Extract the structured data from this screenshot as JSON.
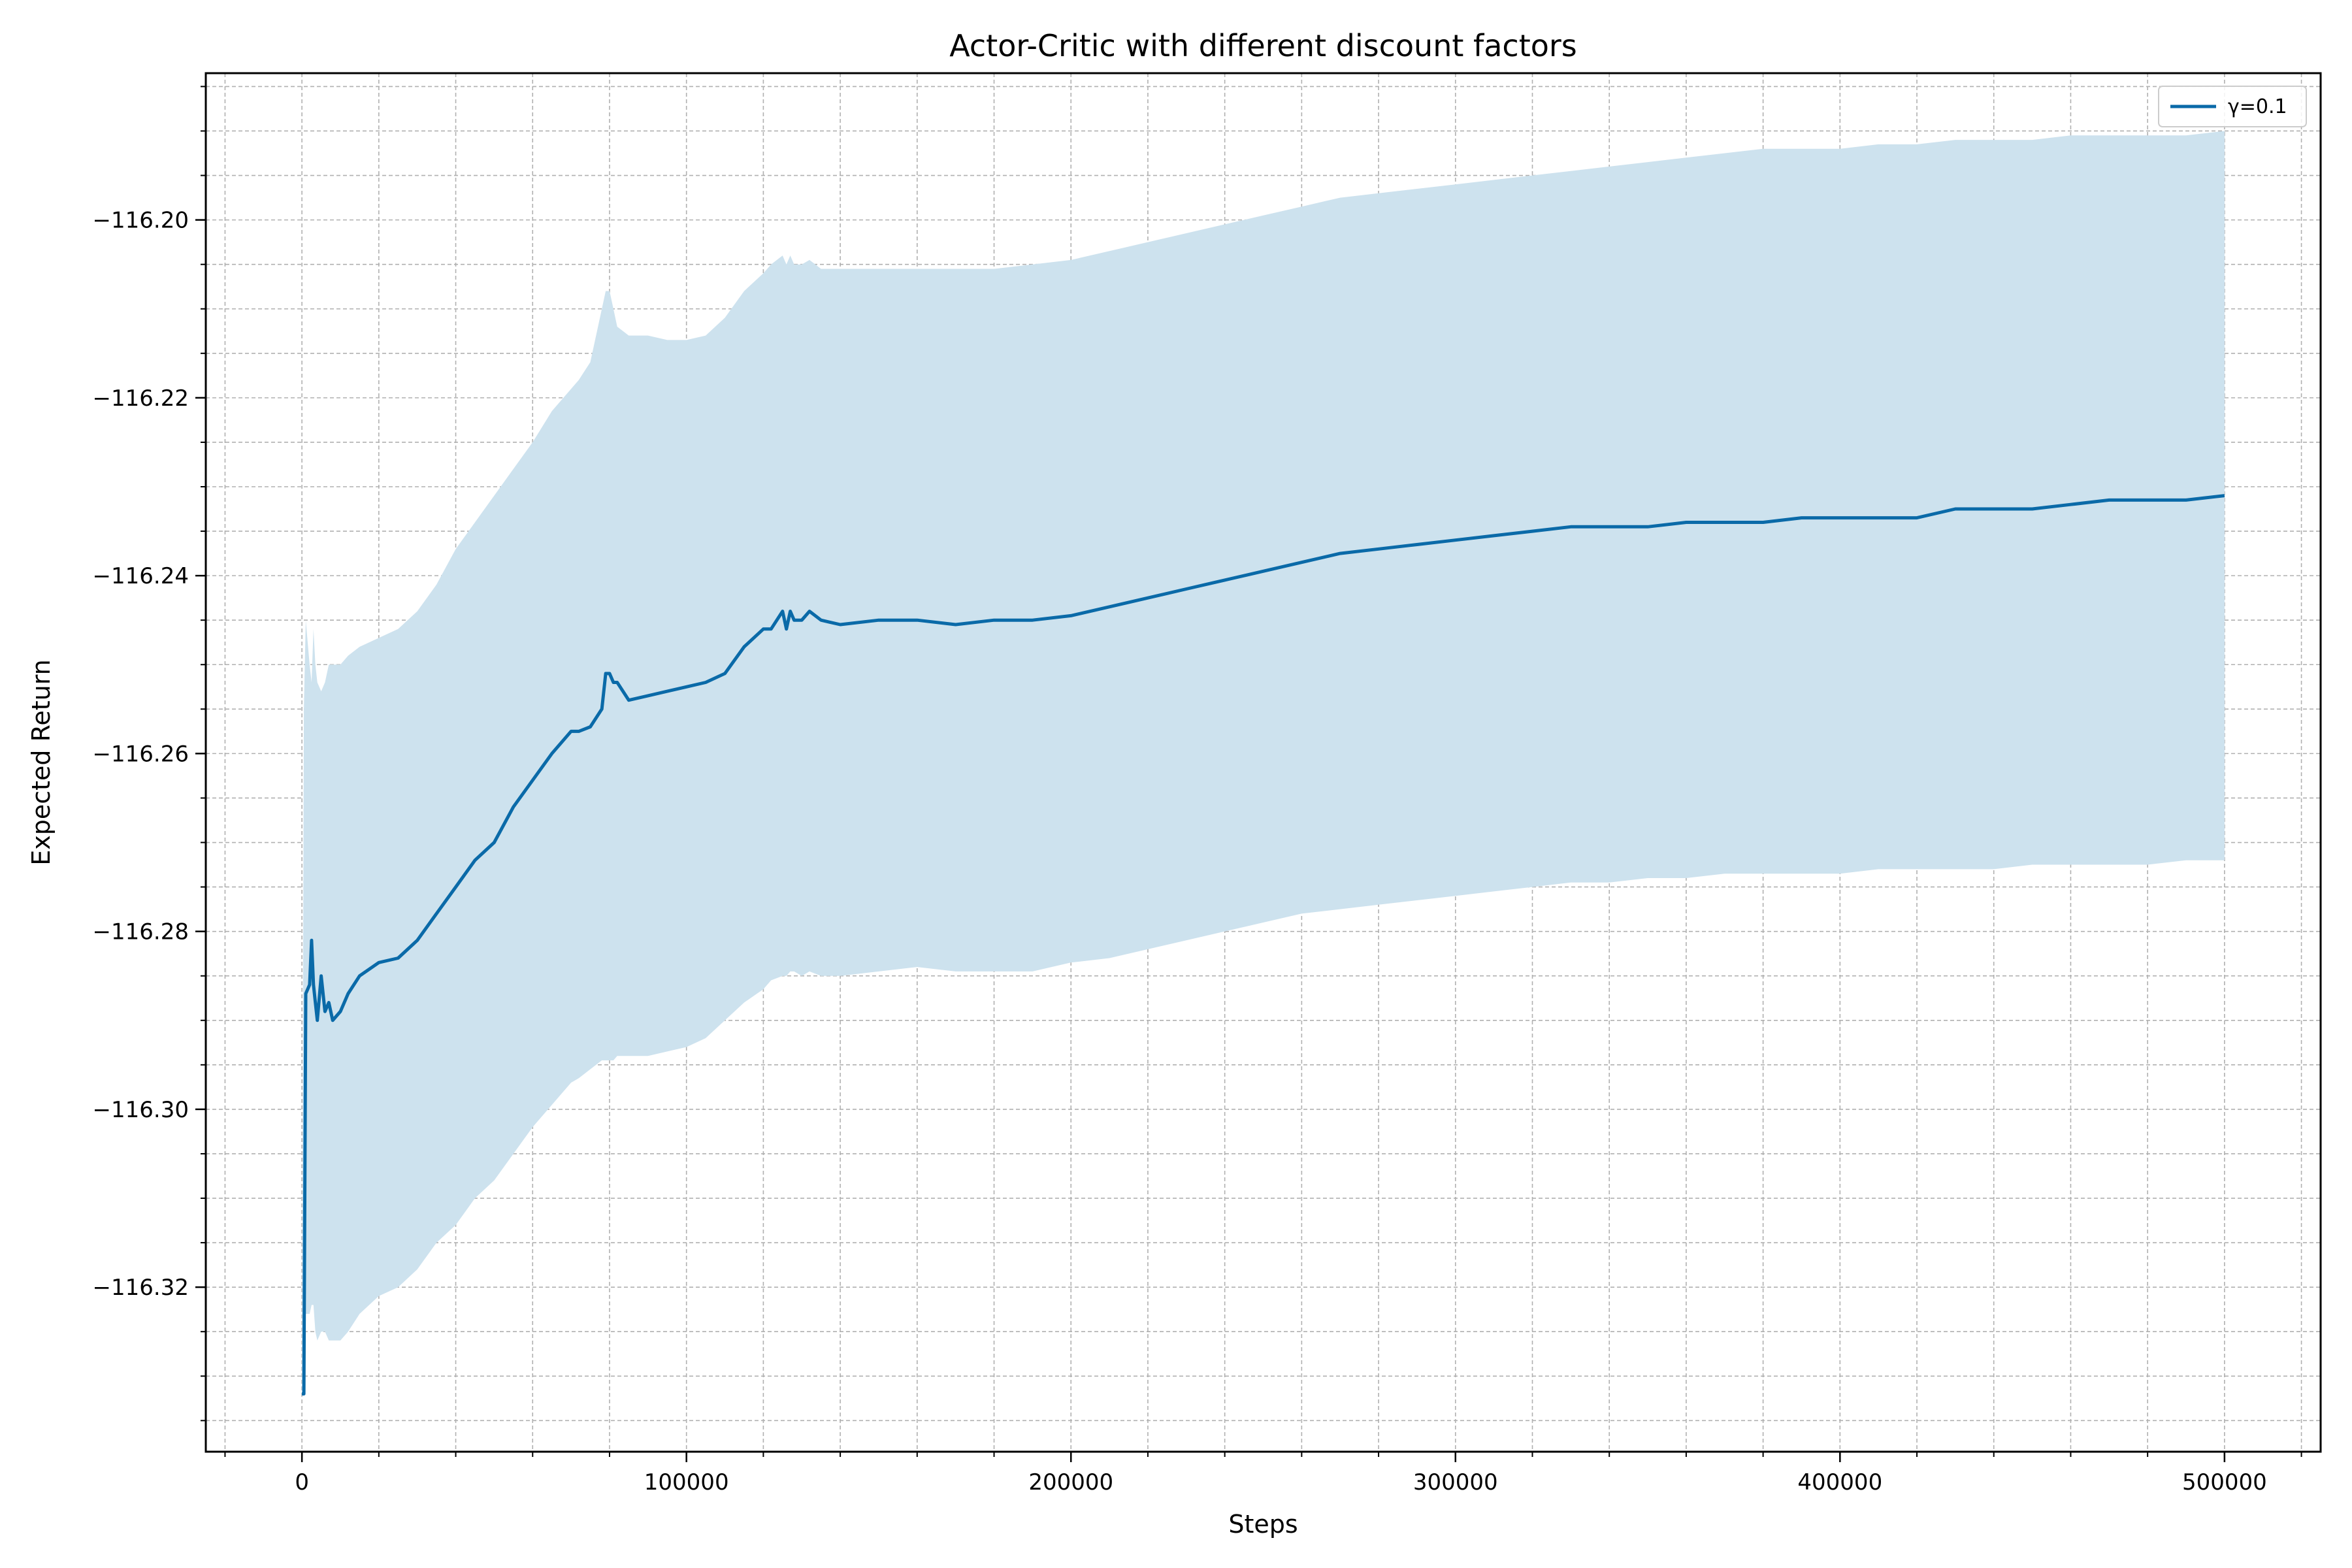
{
  "chart_data": {
    "type": "line",
    "title": "Actor-Critic with different discount factors",
    "xlabel": "Steps",
    "ylabel": "Expected Return",
    "xlim": [
      -25000,
      525000
    ],
    "ylim": [
      -116.3385,
      -116.1835
    ],
    "x_major_ticks": [
      0,
      100000,
      200000,
      300000,
      400000,
      500000
    ],
    "x_tick_labels": [
      "0",
      "100000",
      "200000",
      "300000",
      "400000",
      "500000"
    ],
    "x_minor_step": 20000,
    "y_major_ticks": [
      -116.32,
      -116.3,
      -116.28,
      -116.26,
      -116.24,
      -116.22,
      -116.2
    ],
    "y_tick_labels": [
      "−116.32",
      "−116.30",
      "−116.28",
      "−116.26",
      "−116.24",
      "−116.22",
      "−116.20"
    ],
    "y_minor_step": 0.005,
    "grid": true,
    "legend_position": "top-right",
    "colors": {
      "line": "#0a6aa8",
      "band": "#cde2ee",
      "grid": "#b0b0b0"
    },
    "series": [
      {
        "name": "γ=0.1",
        "x": [
          0,
          500,
          1000,
          2000,
          2500,
          3000,
          3500,
          4000,
          5000,
          6000,
          7000,
          8000,
          10000,
          12000,
          15000,
          20000,
          25000,
          30000,
          35000,
          40000,
          45000,
          50000,
          55000,
          60000,
          65000,
          70000,
          72000,
          75000,
          78000,
          79000,
          80000,
          81000,
          82000,
          85000,
          90000,
          95000,
          100000,
          105000,
          110000,
          115000,
          120000,
          122000,
          125000,
          126000,
          127000,
          128000,
          130000,
          132000,
          135000,
          140000,
          150000,
          160000,
          170000,
          180000,
          190000,
          200000,
          210000,
          220000,
          230000,
          240000,
          250000,
          260000,
          270000,
          280000,
          290000,
          300000,
          310000,
          320000,
          330000,
          340000,
          350000,
          360000,
          370000,
          380000,
          390000,
          400000,
          410000,
          420000,
          430000,
          440000,
          450000,
          460000,
          470000,
          480000,
          490000,
          500000
        ],
        "y": [
          -116.332,
          -116.332,
          -116.287,
          -116.286,
          -116.281,
          -116.286,
          -116.288,
          -116.29,
          -116.285,
          -116.289,
          -116.288,
          -116.29,
          -116.289,
          -116.287,
          -116.285,
          -116.2835,
          -116.283,
          -116.281,
          -116.278,
          -116.275,
          -116.272,
          -116.27,
          -116.266,
          -116.263,
          -116.26,
          -116.2575,
          -116.2575,
          -116.257,
          -116.255,
          -116.251,
          -116.251,
          -116.252,
          -116.252,
          -116.254,
          -116.2535,
          -116.253,
          -116.2525,
          -116.252,
          -116.251,
          -116.248,
          -116.246,
          -116.246,
          -116.244,
          -116.246,
          -116.244,
          -116.245,
          -116.245,
          -116.244,
          -116.245,
          -116.2455,
          -116.245,
          -116.245,
          -116.2455,
          -116.245,
          -116.245,
          -116.2445,
          -116.2435,
          -116.2425,
          -116.2415,
          -116.2405,
          -116.2395,
          -116.2385,
          -116.2375,
          -116.237,
          -116.2365,
          -116.236,
          -116.2355,
          -116.235,
          -116.2345,
          -116.2345,
          -116.2345,
          -116.234,
          -116.234,
          -116.234,
          -116.2335,
          -116.2335,
          -116.2335,
          -116.2335,
          -116.2325,
          -116.2325,
          -116.2325,
          -116.232,
          -116.2315,
          -116.2315,
          -116.2315,
          -116.231
        ],
        "band_upper": [
          -116.33,
          -116.255,
          -116.245,
          -116.25,
          -116.252,
          -116.246,
          -116.25,
          -116.252,
          -116.253,
          -116.252,
          -116.25,
          -116.25,
          -116.25,
          -116.249,
          -116.248,
          -116.247,
          -116.246,
          -116.244,
          -116.241,
          -116.237,
          -116.234,
          -116.231,
          -116.228,
          -116.225,
          -116.2215,
          -116.219,
          -116.218,
          -116.216,
          -116.21,
          -116.208,
          -116.208,
          -116.21,
          -116.212,
          -116.213,
          -116.213,
          -116.2135,
          -116.2135,
          -116.213,
          -116.211,
          -116.208,
          -116.206,
          -116.205,
          -116.204,
          -116.205,
          -116.204,
          -116.205,
          -116.205,
          -116.2045,
          -116.2055,
          -116.2055,
          -116.2055,
          -116.2055,
          -116.2055,
          -116.2055,
          -116.205,
          -116.2045,
          -116.2035,
          -116.2025,
          -116.2015,
          -116.2005,
          -116.1995,
          -116.1985,
          -116.1975,
          -116.197,
          -116.1965,
          -116.196,
          -116.1955,
          -116.195,
          -116.1945,
          -116.194,
          -116.1935,
          -116.193,
          -116.1925,
          -116.192,
          -116.192,
          -116.192,
          -116.1915,
          -116.1915,
          -116.191,
          -116.191,
          -116.191,
          -116.1905,
          -116.1905,
          -116.1905,
          -116.1905,
          -116.19
        ],
        "band_lower": [
          -116.333,
          -116.32,
          -116.323,
          -116.323,
          -116.322,
          -116.322,
          -116.325,
          -116.326,
          -116.325,
          -116.325,
          -116.326,
          -116.326,
          -116.326,
          -116.325,
          -116.323,
          -116.321,
          -116.32,
          -116.318,
          -116.315,
          -116.313,
          -116.31,
          -116.308,
          -116.305,
          -116.302,
          -116.2995,
          -116.297,
          -116.2965,
          -116.2955,
          -116.2945,
          -116.2945,
          -116.2945,
          -116.2945,
          -116.294,
          -116.294,
          -116.294,
          -116.2935,
          -116.293,
          -116.292,
          -116.29,
          -116.288,
          -116.2865,
          -116.2855,
          -116.285,
          -116.285,
          -116.2845,
          -116.2845,
          -116.285,
          -116.2845,
          -116.285,
          -116.285,
          -116.2845,
          -116.284,
          -116.2845,
          -116.2845,
          -116.2845,
          -116.2835,
          -116.283,
          -116.282,
          -116.281,
          -116.28,
          -116.279,
          -116.278,
          -116.2775,
          -116.277,
          -116.2765,
          -116.276,
          -116.2755,
          -116.275,
          -116.2745,
          -116.2745,
          -116.274,
          -116.274,
          -116.2735,
          -116.2735,
          -116.2735,
          -116.2735,
          -116.273,
          -116.273,
          -116.273,
          -116.273,
          -116.2725,
          -116.2725,
          -116.2725,
          -116.2725,
          -116.272,
          -116.272
        ]
      }
    ]
  }
}
